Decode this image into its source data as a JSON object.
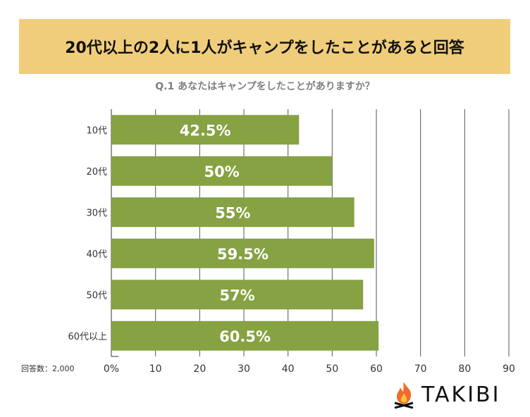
{
  "chart_data": {
    "type": "bar",
    "orientation": "horizontal",
    "title": "20代以上の2人に1人がキャンプをしたことがあると回答",
    "subtitle": "Q.1 あなたはキャンプをしたことがありますか？",
    "categories": [
      "10代",
      "20代",
      "30代",
      "40代",
      "50代",
      "60代以上"
    ],
    "values": [
      42.5,
      50,
      55,
      59.5,
      57,
      60.5
    ],
    "data_labels": [
      "42.5%",
      "50%",
      "55%",
      "59.5%",
      "57%",
      "60.5%"
    ],
    "xticks": [
      "0%",
      "10",
      "20",
      "30",
      "40",
      "50",
      "60",
      "70",
      "80",
      "90"
    ],
    "xlim": [
      0,
      90
    ],
    "grid": true,
    "bar_color": "#86a242",
    "note": "回答数：2,000"
  },
  "logo": {
    "text": "TAKIBI"
  }
}
